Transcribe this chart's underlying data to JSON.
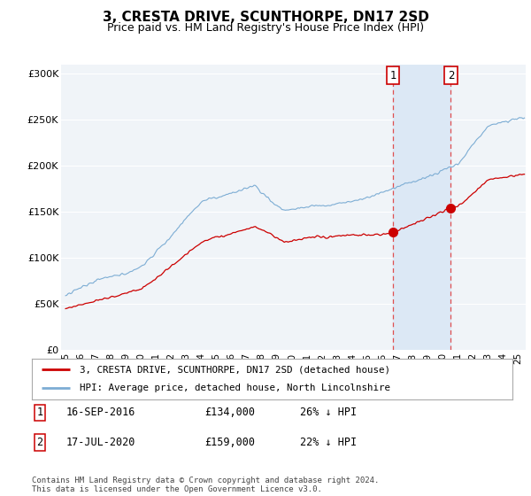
{
  "title": "3, CRESTA DRIVE, SCUNTHORPE, DN17 2SD",
  "subtitle": "Price paid vs. HM Land Registry's House Price Index (HPI)",
  "title_fontsize": 11,
  "subtitle_fontsize": 9,
  "ylabel_ticks": [
    "£0",
    "£50K",
    "£100K",
    "£150K",
    "£200K",
    "£250K",
    "£300K"
  ],
  "ytick_values": [
    0,
    50000,
    100000,
    150000,
    200000,
    250000,
    300000
  ],
  "ylim": [
    0,
    310000
  ],
  "xlim_start": 1994.7,
  "xlim_end": 2025.5,
  "background_color": "#ffffff",
  "plot_bg_color": "#f0f4f8",
  "grid_color": "#ffffff",
  "red_color": "#cc0000",
  "blue_color": "#7dadd4",
  "shade_color": "#dce8f5",
  "event1_x": 2016.71,
  "event2_x": 2020.54,
  "event1_price_y": 134000,
  "event2_price_y": 159000,
  "event1_label": "1",
  "event2_label": "2",
  "event1_date": "16-SEP-2016",
  "event1_price": "£134,000",
  "event1_pct": "26% ↓ HPI",
  "event2_date": "17-JUL-2020",
  "event2_price": "£159,000",
  "event2_pct": "22% ↓ HPI",
  "legend_label1": "3, CRESTA DRIVE, SCUNTHORPE, DN17 2SD (detached house)",
  "legend_label2": "HPI: Average price, detached house, North Lincolnshire",
  "footer": "Contains HM Land Registry data © Crown copyright and database right 2024.\nThis data is licensed under the Open Government Licence v3.0.",
  "xtick_years": [
    1995,
    1996,
    1997,
    1998,
    1999,
    2000,
    2001,
    2002,
    2003,
    2004,
    2005,
    2006,
    2007,
    2008,
    2009,
    2010,
    2011,
    2012,
    2013,
    2014,
    2015,
    2016,
    2017,
    2018,
    2019,
    2020,
    2021,
    2022,
    2023,
    2024,
    2025
  ]
}
